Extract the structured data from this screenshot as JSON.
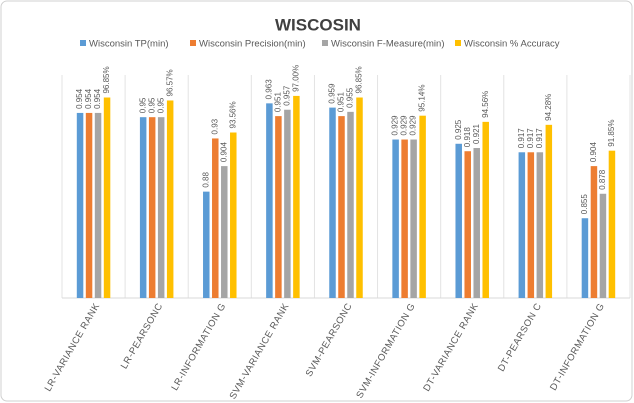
{
  "chart_data": {
    "type": "bar",
    "title": "WISCOSIN",
    "categories": [
      "LR-VARIANCE RANK",
      "LR-PEARSONC",
      "LR-INFORMATION G",
      "SVM-VARIANCE RANK",
      "SVM-PEARSONC",
      "SVM-INFORMATION G",
      "DT-VARIANCE RANK",
      "DT-PEARSON C",
      "DT-INFORMATION G"
    ],
    "series": [
      {
        "name": "Wisconsin TP(min)",
        "color": "#5b9bd5",
        "values": [
          0.954,
          0.95,
          0.88,
          0.963,
          0.959,
          0.929,
          0.925,
          0.917,
          0.855
        ]
      },
      {
        "name": "Wisconsin Precision(min)",
        "color": "#ed7d31",
        "values": [
          0.954,
          0.95,
          0.93,
          0.951,
          0.951,
          0.929,
          0.918,
          0.917,
          0.904
        ]
      },
      {
        "name": "Wisconsin F-Measure(min)",
        "color": "#a5a5a5",
        "values": [
          0.954,
          0.95,
          0.904,
          0.957,
          0.955,
          0.929,
          0.921,
          0.917,
          0.878
        ]
      },
      {
        "name": "Wisconsin % Accuracy",
        "color": "#ffc000",
        "axis": "y2",
        "values": [
          96.85,
          96.57,
          93.56,
          97,
          96.85,
          95.14,
          94.56,
          94.28,
          91.85
        ],
        "value_labels": [
          "96.85%",
          "96.57%",
          "93.56%",
          "97.00%",
          "96.85%",
          "95.14%",
          "94.56%",
          "94.28%",
          "91.85%"
        ]
      }
    ],
    "ylim": [
      0.78,
      1.0
    ],
    "y2lim": [
      78,
      100
    ],
    "legend": "top"
  }
}
